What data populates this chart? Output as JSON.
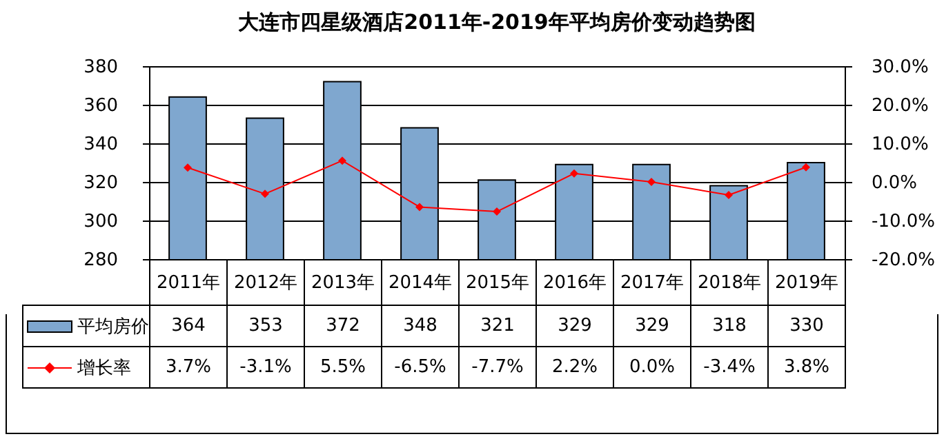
{
  "chart_data": {
    "type": "bar",
    "title": "大连市四星级酒店2011年-2019年平均房价变动趋势图",
    "categories": [
      "2011年",
      "2012年",
      "2013年",
      "2014年",
      "2015年",
      "2016年",
      "2017年",
      "2018年",
      "2019年"
    ],
    "series": [
      {
        "name": "平均房价",
        "color": "#7fa7cf",
        "values": [
          364,
          353,
          372,
          348,
          321,
          329,
          329,
          318,
          330
        ],
        "value_labels": [
          "364",
          "353",
          "372",
          "348",
          "321",
          "329",
          "329",
          "318",
          "330"
        ]
      },
      {
        "name": "增长率",
        "type": "line",
        "axis": "y2",
        "color": "#ff0000",
        "values": [
          3.7,
          -3.1,
          5.5,
          -6.5,
          -7.7,
          2.2,
          0.0,
          -3.4,
          3.8
        ],
        "value_labels": [
          "3.7%",
          "-3.1%",
          "5.5%",
          "-6.5%",
          "-7.7%",
          "2.2%",
          "0.0%",
          "-3.4%",
          "3.8%"
        ]
      }
    ],
    "ylim": [
      280,
      380
    ],
    "yticks": [
      280,
      300,
      320,
      340,
      360,
      380
    ],
    "y2lim": [
      -20,
      30
    ],
    "y2ticks": [
      {
        "value": -20,
        "label": "-20.0%"
      },
      {
        "value": -10,
        "label": "-10.0%"
      },
      {
        "value": 0,
        "label": "0.0%"
      },
      {
        "value": 10,
        "label": "10.0%"
      },
      {
        "value": 20,
        "label": "20.0%"
      },
      {
        "value": 30,
        "label": "30.0%"
      }
    ],
    "grid": "y",
    "legend": "bottom",
    "marker": "diamond",
    "line_style": "solid"
  }
}
